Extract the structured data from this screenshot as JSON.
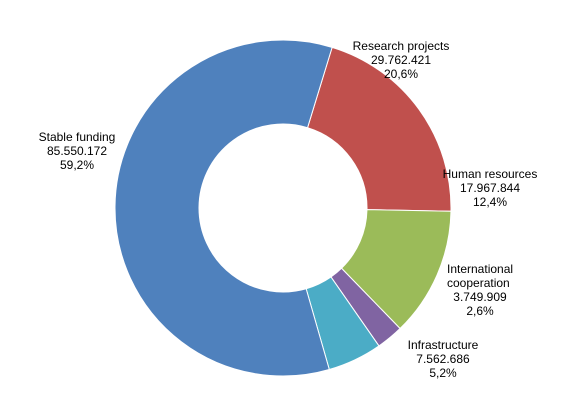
{
  "chart_data": {
    "type": "pie",
    "variant": "donut",
    "title": "",
    "legend": "none",
    "slices": [
      {
        "name": "Research projects",
        "value": 29762421,
        "value_label": "29.762.421",
        "percent_label": "20,6%",
        "color": "#c0504d"
      },
      {
        "name": "Human resources",
        "value": 17967844,
        "value_label": "17.967.844",
        "percent_label": "12,4%",
        "color": "#9bbb59"
      },
      {
        "name": "International cooperation",
        "value": 3749909,
        "value_label": "3.749.909",
        "percent_label": "2,6%",
        "color": "#8064a2"
      },
      {
        "name": "Infrastructure",
        "value": 7562686,
        "value_label": "7.562.686",
        "percent_label": "5,2%",
        "color": "#4bacc6"
      },
      {
        "name": "Stable funding",
        "value": 85550172,
        "value_label": "85.550.172",
        "percent_label": "59,2%",
        "color": "#4f81bd"
      }
    ]
  }
}
